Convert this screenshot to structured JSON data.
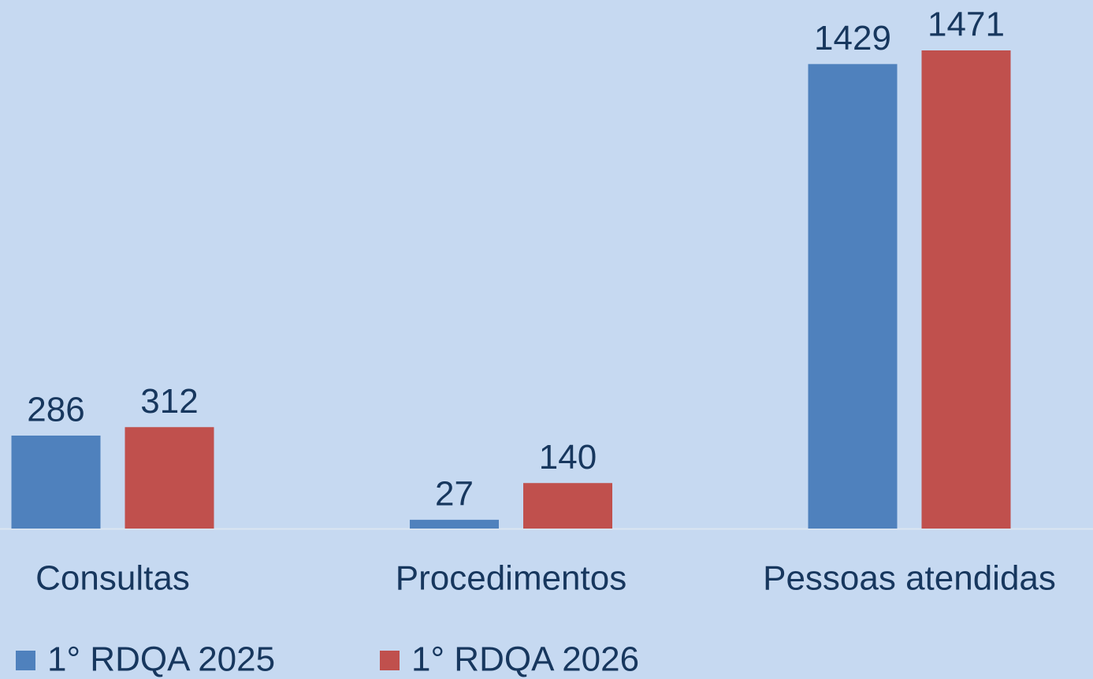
{
  "chart_data": {
    "type": "bar",
    "categories": [
      "Consultas",
      "Procedimentos",
      "Pessoas atendidas"
    ],
    "series": [
      {
        "name": "1° RDQA 2025",
        "color": "#4f81bd",
        "values": [
          286,
          27,
          1429
        ]
      },
      {
        "name": "1° RDQA 2026",
        "color": "#c0504d",
        "values": [
          312,
          140,
          1471
        ]
      }
    ],
    "legend": "bottom"
  }
}
